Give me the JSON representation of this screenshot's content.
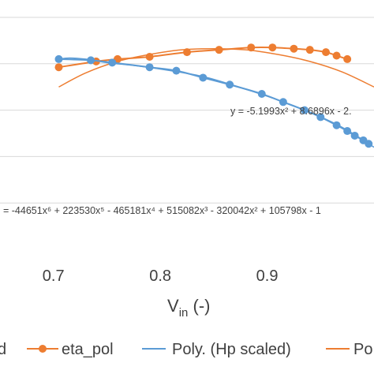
{
  "chart_data": {
    "type": "line",
    "title": "",
    "xlabel": "V",
    "xlabel_sub": "in",
    "xlabel_suffix": " (-)",
    "xlim": [
      0.65,
      1.0
    ],
    "ylim": [
      0,
      1
    ],
    "x_ticks": [
      0.7,
      0.8,
      0.9
    ],
    "x_tick_labels": [
      "0.7",
      "0.8",
      "0.9"
    ],
    "grid": true,
    "legend_position": "bottom",
    "series": [
      {
        "name": "Hp scaled",
        "legend_label": "d",
        "color": "#5b9bd5",
        "marker": "circle",
        "x": [
          0.705,
          0.735,
          0.755,
          0.79,
          0.815,
          0.84,
          0.865,
          0.895,
          0.915,
          0.935,
          0.95,
          0.965,
          0.975,
          0.982,
          0.99,
          0.995
        ],
        "y": [
          0.82,
          0.815,
          0.805,
          0.785,
          0.77,
          0.74,
          0.71,
          0.67,
          0.635,
          0.6,
          0.57,
          0.535,
          0.51,
          0.49,
          0.47,
          0.455
        ]
      },
      {
        "name": "eta_pol",
        "legend_label": "eta_pol",
        "color": "#ed7d31",
        "marker": "circle",
        "x": [
          0.705,
          0.74,
          0.76,
          0.79,
          0.825,
          0.855,
          0.885,
          0.905,
          0.925,
          0.94,
          0.955,
          0.965,
          0.975
        ],
        "y": [
          0.785,
          0.81,
          0.82,
          0.83,
          0.85,
          0.86,
          0.87,
          0.87,
          0.865,
          0.86,
          0.85,
          0.835,
          0.82
        ]
      },
      {
        "name": "Poly. (Hp scaled)",
        "legend_label": "Poly. (Hp scaled)",
        "color": "#5b9bd5",
        "marker": "none",
        "equation": "= -44651x⁶ + 223530x⁵ - 465181x⁴ + 515082x³ - 320042x² + 105798x - 1",
        "x": [
          0.705,
          0.715,
          0.73,
          0.75,
          0.78,
          0.81,
          0.84,
          0.87,
          0.9,
          0.93,
          0.96,
          0.98,
          1.0
        ],
        "y": [
          0.82,
          0.825,
          0.82,
          0.805,
          0.79,
          0.77,
          0.745,
          0.705,
          0.66,
          0.61,
          0.55,
          0.5,
          0.44
        ]
      },
      {
        "name": "Poly. (eta_pol)",
        "legend_label": "Po",
        "color": "#ed7d31",
        "marker": "none",
        "equation": "y = -5.1993x² + 8.6896x - 2.",
        "x": [
          0.705,
          0.73,
          0.76,
          0.79,
          0.82,
          0.85,
          0.88,
          0.91,
          0.94,
          0.97,
          1.0
        ],
        "y": [
          0.7,
          0.76,
          0.81,
          0.84,
          0.86,
          0.865,
          0.86,
          0.84,
          0.81,
          0.765,
          0.7
        ]
      }
    ]
  }
}
